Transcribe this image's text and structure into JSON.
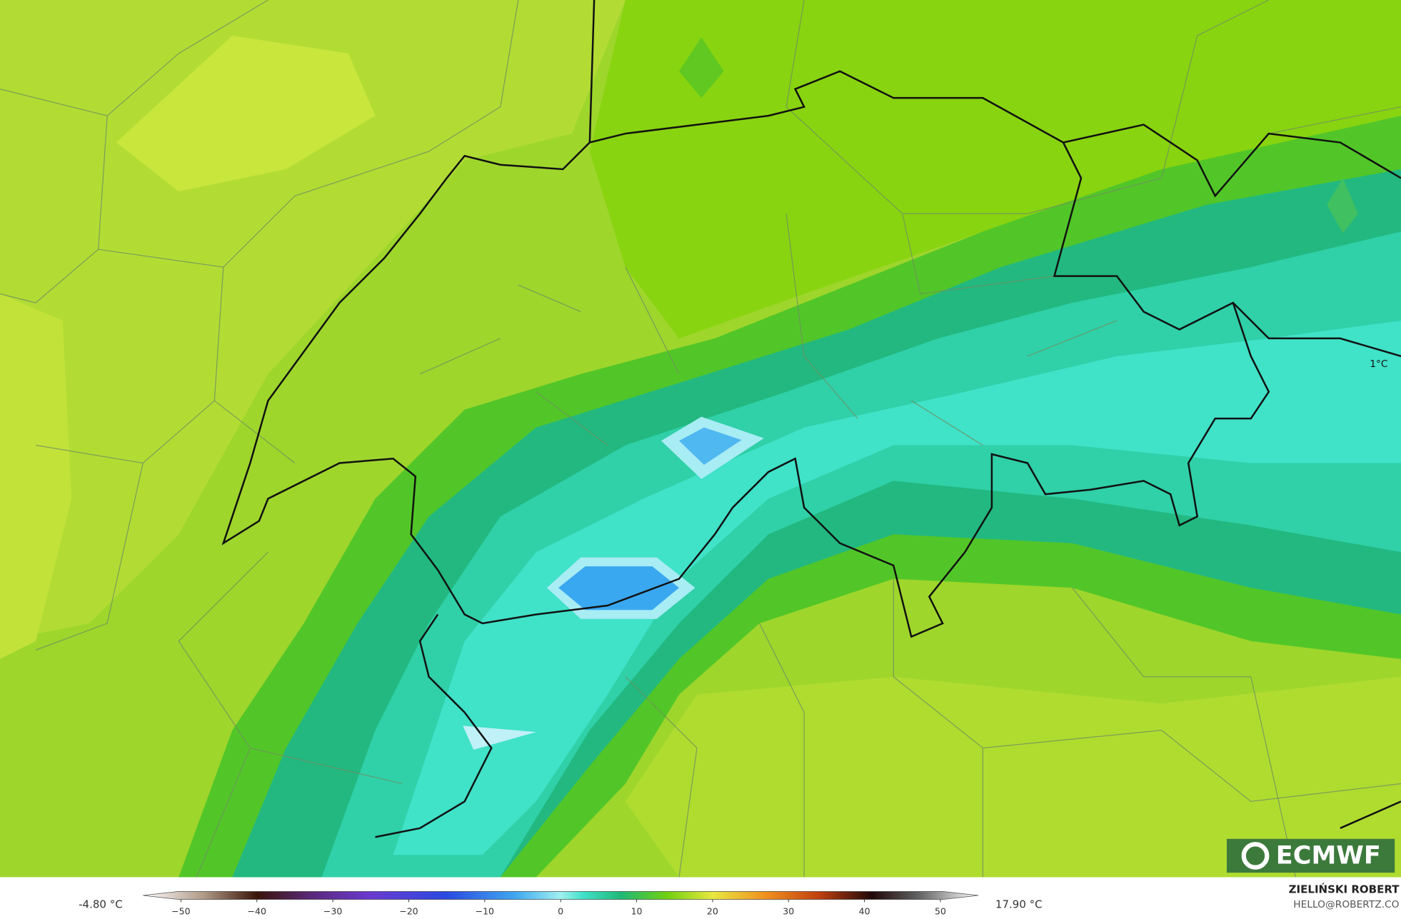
{
  "map": {
    "annotation": "1°C",
    "logo": "ECMWF"
  },
  "legend": {
    "min_label": "-4.80 °C",
    "max_label": "17.90 °C",
    "lim": [
      -55,
      55
    ],
    "ticks": [
      {
        "value": -50,
        "label": "−50"
      },
      {
        "value": -40,
        "label": "−40"
      },
      {
        "value": -30,
        "label": "−30"
      },
      {
        "value": -20,
        "label": "−20"
      },
      {
        "value": -10,
        "label": "−10"
      },
      0,
      10,
      20,
      30,
      40,
      50
    ],
    "colors": [
      [
        -55,
        "#ffffff"
      ],
      [
        -47,
        "#b09a88"
      ],
      [
        -40,
        "#3a1408"
      ],
      [
        -33,
        "#5a2878"
      ],
      [
        -25,
        "#6a3ad0"
      ],
      [
        -15,
        "#2a4ae0"
      ],
      [
        -6,
        "#40a8f0"
      ],
      [
        0,
        "#a0f0f0"
      ],
      [
        3,
        "#40e0c8"
      ],
      [
        8,
        "#20b878"
      ],
      [
        14,
        "#70d010"
      ],
      [
        20,
        "#e8e840"
      ],
      [
        27,
        "#f09020"
      ],
      [
        34,
        "#c04010"
      ],
      [
        41,
        "#200808"
      ],
      [
        47,
        "#606060"
      ],
      [
        55,
        "#ffffff"
      ]
    ]
  },
  "credit": {
    "author": "ZIELIŃSKI ROBERT",
    "contact": "HELLO@ROBERTZ.CO"
  }
}
